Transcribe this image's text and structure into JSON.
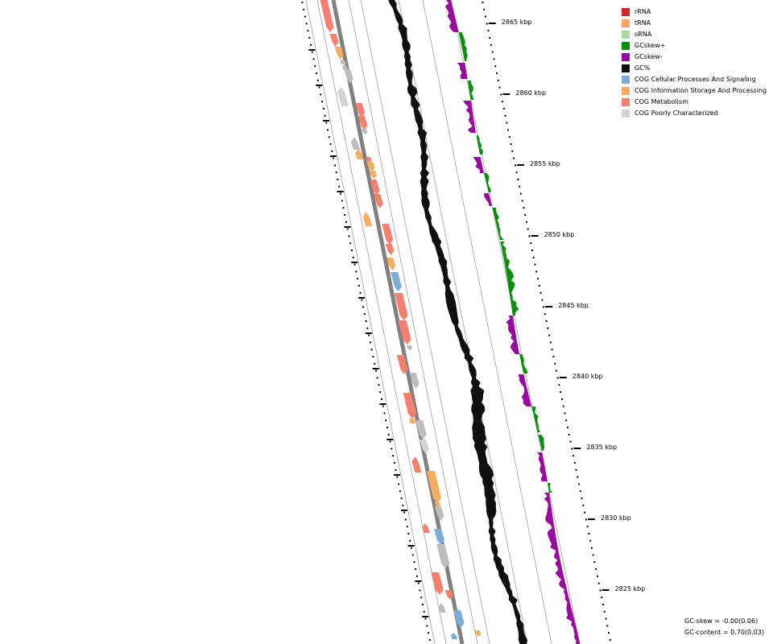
{
  "legend": [
    {
      "label": "rRNA",
      "color": "#d62728"
    },
    {
      "label": "tRNA",
      "color": "#f4a460"
    },
    {
      "label": "sRNA",
      "color": "#a8d89a"
    },
    {
      "label": "GCskew+",
      "color": "#0a8f0a"
    },
    {
      "label": "GCskew-",
      "color": "#9b0aa0"
    },
    {
      "label": "GC%",
      "color": "#111111"
    },
    {
      "label": "COG Cellular Processes And Signaling",
      "color": "#7aaed6"
    },
    {
      "label": "COG Information Storage And Processing",
      "color": "#f7ad5f"
    },
    {
      "label": "COG Metabolism",
      "color": "#f5806e"
    },
    {
      "label": "COG Poorly Characterized",
      "color": "#d3d3d3"
    }
  ],
  "colors": {
    "cog_other": "#bdbdbd",
    "backbone": "#808080",
    "track_line": "#9e9e9e",
    "gc_content": "#111111",
    "skew_pos": "#0a8f0a",
    "skew_neg": "#9b0aa0"
  },
  "ticks": [
    {
      "label": "2865 kbp",
      "kbp": 2865
    },
    {
      "label": "2860 kbp",
      "kbp": 2860
    },
    {
      "label": "2855 kbp",
      "kbp": 2855
    },
    {
      "label": "2850 kbp",
      "kbp": 2850
    },
    {
      "label": "2845 kbp",
      "kbp": 2845
    },
    {
      "label": "2840 kbp",
      "kbp": 2840
    },
    {
      "label": "2835 kbp",
      "kbp": 2835
    },
    {
      "label": "2830 kbp",
      "kbp": 2830
    },
    {
      "label": "2825 kbp",
      "kbp": 2825
    }
  ],
  "stats": {
    "gc_skew": "GC-skew = -0.00(0.06)",
    "gc_content": "GC-content = 0.70(0.03)"
  }
}
